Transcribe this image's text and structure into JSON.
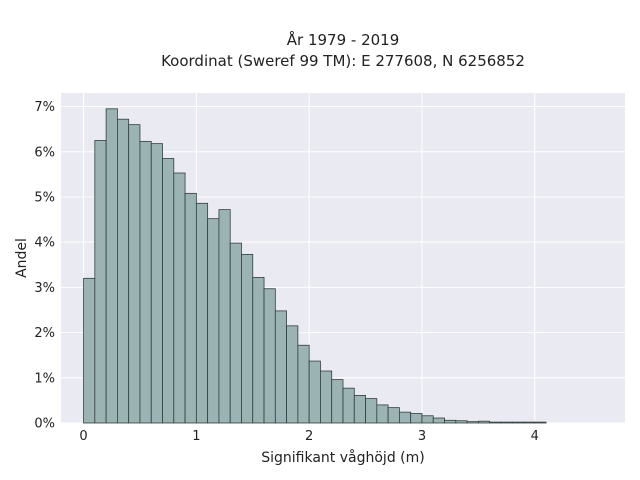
{
  "chart_data": {
    "type": "bar",
    "title_line1": "År 1979 - 2019",
    "title_line2": "Koordinat (Sweref 99 TM): E 277608, N 6256852",
    "xlabel": "Signifikant våghöjd (m)",
    "ylabel": "Andel",
    "x_ticks": [
      "0",
      "1",
      "2",
      "3",
      "4"
    ],
    "x_tick_values": [
      0,
      1,
      2,
      3,
      4
    ],
    "y_ticks": [
      "0%",
      "1%",
      "2%",
      "3%",
      "4%",
      "5%",
      "6%",
      "7%"
    ],
    "y_tick_values": [
      0,
      1,
      2,
      3,
      4,
      5,
      6,
      7
    ],
    "xlim": [
      -0.2,
      4.8
    ],
    "ylim": [
      0,
      7.3
    ],
    "bin_width": 0.1,
    "bin_starts": [
      0.0,
      0.1,
      0.2,
      0.3,
      0.4,
      0.5,
      0.6,
      0.7,
      0.8,
      0.9,
      1.0,
      1.1,
      1.2,
      1.3,
      1.4,
      1.5,
      1.6,
      1.7,
      1.8,
      1.9,
      2.0,
      2.1,
      2.2,
      2.3,
      2.4,
      2.5,
      2.6,
      2.7,
      2.8,
      2.9,
      3.0,
      3.1,
      3.2,
      3.3,
      3.4,
      3.5,
      3.6,
      3.7,
      3.8,
      3.9,
      4.0
    ],
    "values": [
      3.2,
      6.25,
      6.95,
      6.72,
      6.6,
      6.23,
      6.18,
      5.85,
      5.53,
      5.08,
      4.86,
      4.52,
      4.72,
      3.98,
      3.73,
      3.22,
      2.97,
      2.48,
      2.15,
      1.72,
      1.37,
      1.15,
      0.96,
      0.77,
      0.61,
      0.54,
      0.4,
      0.34,
      0.24,
      0.21,
      0.16,
      0.11,
      0.06,
      0.05,
      0.03,
      0.04,
      0.02,
      0.02,
      0.02,
      0.02,
      0.02
    ],
    "grid": true,
    "colors": {
      "bar_fill": "#9cb3b3",
      "bar_edge": "#2f3f3f",
      "plot_bg": "#eaeaf2",
      "grid": "#ffffff"
    }
  }
}
